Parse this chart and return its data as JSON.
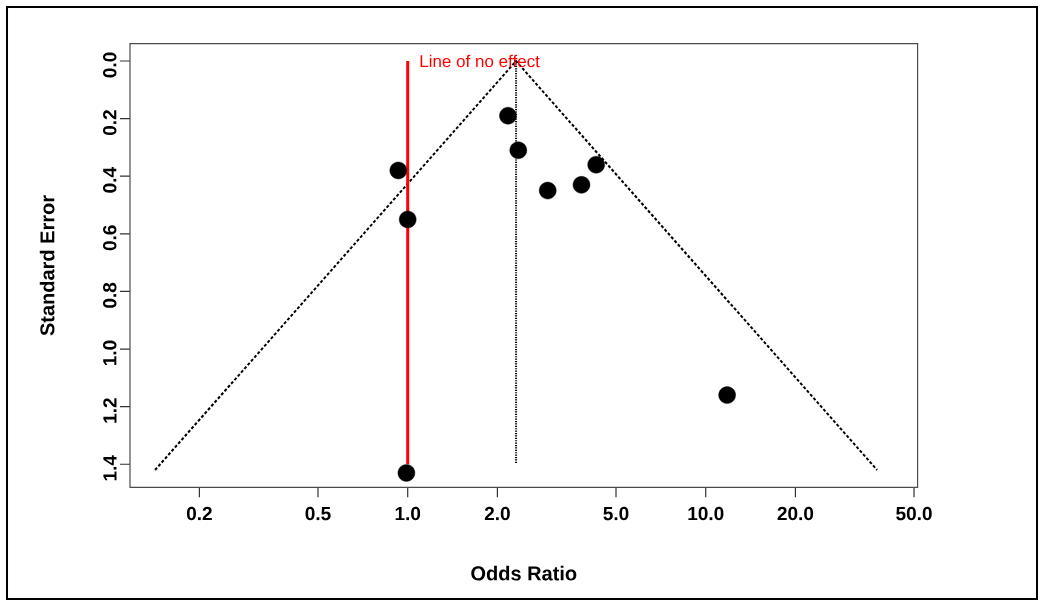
{
  "chart_data": {
    "type": "scatter",
    "xlabel": "Odds Ratio",
    "ylabel": "Standard Error",
    "log": "x",
    "xlim": [
      0.117,
      51.4
    ],
    "ylim": [
      1.48,
      -0.06
    ],
    "xticks": [
      {
        "value": 0.2,
        "label": "0.2"
      },
      {
        "value": 0.5,
        "label": "0.5"
      },
      {
        "value": 1,
        "label": "1.0"
      },
      {
        "value": 2,
        "label": "2.0"
      },
      {
        "value": 5,
        "label": "5.0"
      },
      {
        "value": 10,
        "label": "10.0"
      },
      {
        "value": 20,
        "label": "20.0"
      },
      {
        "value": 50,
        "label": "50.0"
      }
    ],
    "yticks": [
      {
        "value": 0,
        "label": "0.0"
      },
      {
        "value": 0.2,
        "label": "0.2"
      },
      {
        "value": 0.4,
        "label": "0.4"
      },
      {
        "value": 0.6,
        "label": "0.6"
      },
      {
        "value": 0.8,
        "label": "0.8"
      },
      {
        "value": 1.0,
        "label": "1.0"
      },
      {
        "value": 1.2,
        "label": "1.2"
      },
      {
        "value": 1.4,
        "label": "1.4"
      }
    ],
    "series": [
      {
        "marker": "circle",
        "color": "#000000",
        "x": [
          0.93,
          1.0,
          0.99,
          2.17,
          2.35,
          2.95,
          3.83,
          4.29,
          11.8
        ],
        "values": [
          0.38,
          0.55,
          1.43,
          0.19,
          0.31,
          0.45,
          0.43,
          0.36,
          1.16
        ]
      },
      {
        "type": "line",
        "color": "#000000",
        "line_style": "dashed",
        "marker": "none",
        "x": [
          0.142,
          2.31,
          37.6
        ],
        "values": [
          1.42,
          0,
          1.42
        ]
      }
    ],
    "ref_lines": [
      {
        "axis": "x",
        "value": 1,
        "label": "Line of no effect",
        "color": "#ff0000",
        "line_style": "solid"
      },
      {
        "axis": "x",
        "value": 2.31,
        "color": "#000000",
        "line_style": "dotted"
      }
    ]
  }
}
